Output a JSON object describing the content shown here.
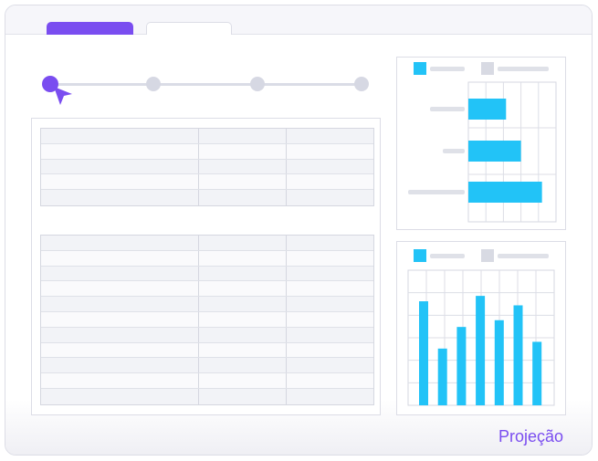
{
  "tabs": [
    {
      "state": "active"
    },
    {
      "state": "inactive"
    }
  ],
  "stepper": {
    "steps": 4,
    "current_step": 1
  },
  "footer": {
    "label": "Projeção"
  },
  "colors": {
    "accent": "#7a4df0",
    "chart_bar": "#22c3f7",
    "legend_secondary": "#d8dae3"
  },
  "chart_data": [
    {
      "type": "bar",
      "orientation": "horizontal",
      "series": [
        {
          "values": [
            0.43,
            0.6,
            0.84
          ]
        }
      ],
      "xlim": [
        0,
        1
      ],
      "grid": true,
      "legend": "top"
    },
    {
      "type": "bar",
      "orientation": "vertical",
      "series": [
        {
          "values": [
            0.77,
            0.42,
            0.58,
            0.81,
            0.63,
            0.74,
            0.47
          ]
        }
      ],
      "ylim": [
        0,
        1
      ],
      "grid": true,
      "legend": "top"
    }
  ]
}
